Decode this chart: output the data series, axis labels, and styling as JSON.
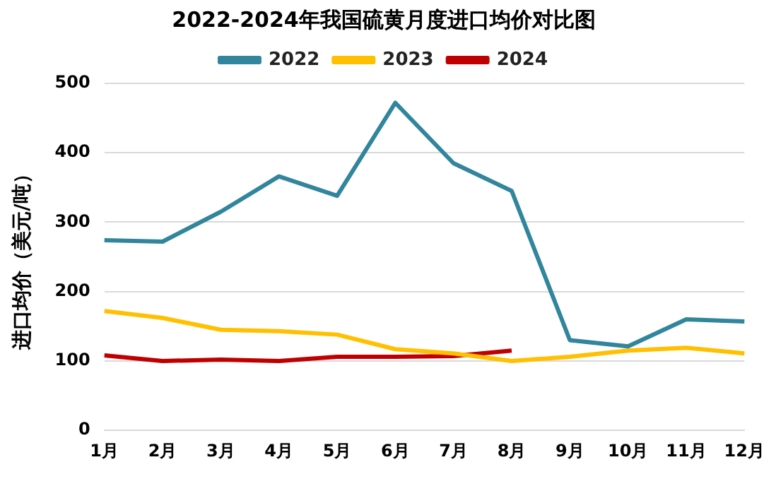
{
  "chart_data": {
    "type": "line",
    "title": "2022-2024年我国硫黄月度进口均价对比图",
    "ylabel": "进口均价（美元/吨）",
    "categories": [
      "1月",
      "2月",
      "3月",
      "4月",
      "5月",
      "6月",
      "7月",
      "8月",
      "9月",
      "10月",
      "11月",
      "12月"
    ],
    "series": [
      {
        "name": "2022",
        "color": "#31859c",
        "values": [
          274,
          272,
          315,
          366,
          338,
          472,
          385,
          345,
          130,
          121,
          160,
          157
        ]
      },
      {
        "name": "2023",
        "color": "#ffc000",
        "values": [
          172,
          162,
          145,
          143,
          138,
          117,
          111,
          100,
          106,
          115,
          119,
          111
        ]
      },
      {
        "name": "2024",
        "color": "#c00000",
        "values": [
          108,
          100,
          102,
          100,
          106,
          106,
          107,
          115,
          null,
          null,
          null,
          null
        ]
      }
    ],
    "ylim": [
      0,
      500
    ],
    "yticks": [
      0,
      100,
      200,
      300,
      400,
      500
    ],
    "grid": "y",
    "legend": "top",
    "marker": "none",
    "line_style": "solid"
  }
}
